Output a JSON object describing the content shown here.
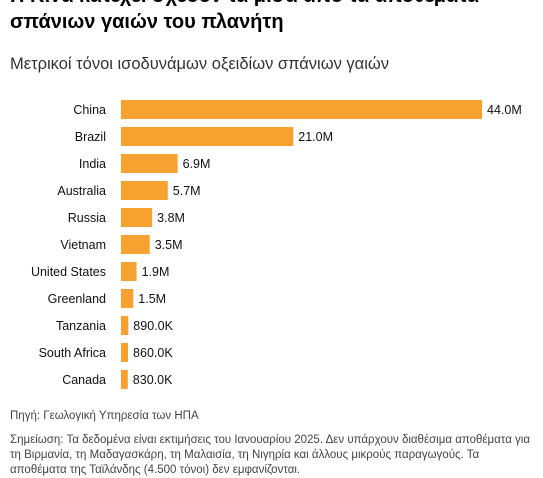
{
  "title": "Η Κίνα κατέχει σχεδόν τα μισά από τα αποθέματα σπάνιων γαιών του πλανήτη",
  "subtitle": "Μετρικοί τόνοι ισοδυνάμων οξειδίων σπάνιων γαιών",
  "source": "Πηγή: Γεωλογική Υπηρεσία των ΗΠΑ",
  "note": "Σημείωση: Τα δεδομένα είναι εκτιμήσεις του Ιανουαρίου 2025. Δεν υπάρχουν διαθέσιμα αποθέματα για τη Βιρμανία, τη Μαδαγασκάρη, τη Μαλαισία, τη Νιγηρία και άλλους μικρούς παραγωγούς. Τα αποθέματα της Ταϊλάνδης (4.500 τόνοι) δεν εμφανίζονται.",
  "colors": {
    "bar": "#f7a130"
  },
  "chart_data": {
    "type": "bar",
    "orientation": "horizontal",
    "categories": [
      "China",
      "Brazil",
      "India",
      "Australia",
      "Russia",
      "Vietnam",
      "United States",
      "Greenland",
      "Tanzania",
      "South Africa",
      "Canada"
    ],
    "values": [
      44000000,
      21000000,
      6900000,
      5700000,
      3800000,
      3500000,
      1900000,
      1500000,
      890000,
      860000,
      830000
    ],
    "data_labels": [
      "44.0M",
      "21.0M",
      "6.9M",
      "5.7M",
      "3.8M",
      "3.5M",
      "1.9M",
      "1.5M",
      "890.0K",
      "860.0K",
      "830.0K"
    ],
    "title": "",
    "xlabel": "",
    "ylabel": "",
    "xlim": [
      0,
      44000000
    ],
    "grid": false,
    "legend": "none"
  }
}
